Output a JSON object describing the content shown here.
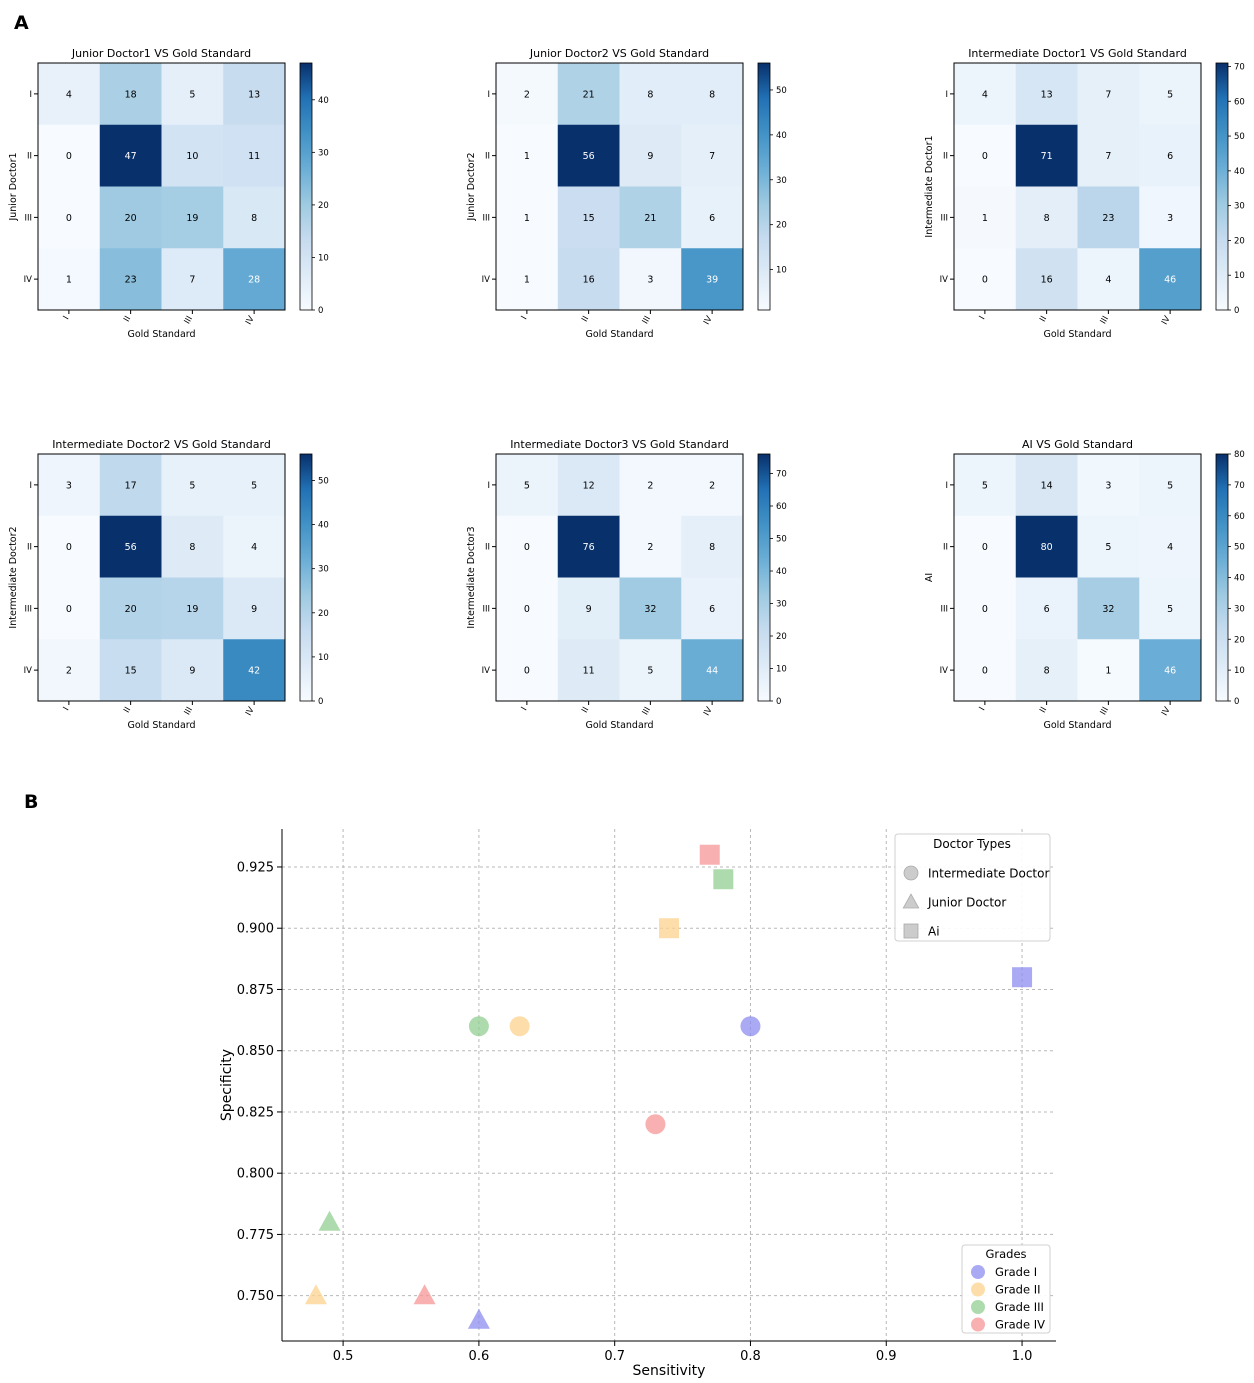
{
  "panel_labels": {
    "a": "A",
    "b": "B"
  },
  "colors": {
    "cmap_low": "#f7fbff",
    "cmap_mid1": "#deebf7",
    "cmap_mid2": "#c6dbef",
    "cmap_mid3": "#9ecae1",
    "cmap_mid4": "#6baed6",
    "cmap_mid5": "#4292c6",
    "cmap_mid6": "#2171b5",
    "cmap_high": "#08306b",
    "grade1": "#8c8cf0",
    "grade2": "#fcd38d",
    "grade3": "#93cf93",
    "grade4": "#f59595",
    "marker_legend_gray": "#cccccc"
  },
  "chart_data": [
    {
      "type": "heatmap",
      "title": "Junior Doctor1 VS Gold Standard",
      "xlabel": "Gold Standard",
      "ylabel": "Junior Doctor1",
      "x_ticks": [
        "I",
        "II",
        "III",
        "IV"
      ],
      "y_ticks": [
        "I",
        "II",
        "III",
        "IV"
      ],
      "matrix": [
        [
          4,
          18,
          5,
          13
        ],
        [
          0,
          47,
          10,
          11
        ],
        [
          0,
          20,
          19,
          8
        ],
        [
          1,
          23,
          7,
          28
        ]
      ],
      "vmin": 0,
      "vmax": 47,
      "colorbar_ticks": [
        0,
        10,
        20,
        30,
        40
      ]
    },
    {
      "type": "heatmap",
      "title": "Junior Doctor2 VS Gold Standard",
      "xlabel": "Gold Standard",
      "ylabel": "Junior Doctor2",
      "x_ticks": [
        "I",
        "II",
        "III",
        "IV"
      ],
      "y_ticks": [
        "I",
        "II",
        "III",
        "IV"
      ],
      "matrix": [
        [
          2,
          21,
          8,
          8
        ],
        [
          1,
          56,
          9,
          7
        ],
        [
          1,
          15,
          21,
          6
        ],
        [
          1,
          16,
          3,
          39
        ]
      ],
      "vmin": 1,
      "vmax": 56,
      "colorbar_ticks": [
        10,
        20,
        30,
        40,
        50
      ]
    },
    {
      "type": "heatmap",
      "title": "Intermediate Doctor1 VS Gold Standard",
      "xlabel": "Gold Standard",
      "ylabel": "Intermediate Doctor1",
      "x_ticks": [
        "I",
        "II",
        "III",
        "IV"
      ],
      "y_ticks": [
        "I",
        "II",
        "III",
        "IV"
      ],
      "matrix": [
        [
          4,
          13,
          7,
          5
        ],
        [
          0,
          71,
          7,
          6
        ],
        [
          1,
          8,
          23,
          3
        ],
        [
          0,
          16,
          4,
          46
        ]
      ],
      "vmin": 0,
      "vmax": 71,
      "colorbar_ticks": [
        0,
        10,
        20,
        30,
        40,
        50,
        60,
        70
      ]
    },
    {
      "type": "heatmap",
      "title": "Intermediate Doctor2 VS Gold Standard",
      "xlabel": "Gold Standard",
      "ylabel": "Intermediate Doctor2",
      "x_ticks": [
        "I",
        "II",
        "III",
        "IV"
      ],
      "y_ticks": [
        "I",
        "II",
        "III",
        "IV"
      ],
      "matrix": [
        [
          3,
          17,
          5,
          5
        ],
        [
          0,
          56,
          8,
          4
        ],
        [
          0,
          20,
          19,
          9
        ],
        [
          2,
          15,
          9,
          42
        ]
      ],
      "vmin": 0,
      "vmax": 56,
      "colorbar_ticks": [
        0,
        10,
        20,
        30,
        40,
        50
      ]
    },
    {
      "type": "heatmap",
      "title": "Intermediate Doctor3 VS Gold Standard",
      "xlabel": "Gold Standard",
      "ylabel": "Intermediate Doctor3",
      "x_ticks": [
        "I",
        "II",
        "III",
        "IV"
      ],
      "y_ticks": [
        "I",
        "II",
        "III",
        "IV"
      ],
      "matrix": [
        [
          5,
          12,
          2,
          2
        ],
        [
          0,
          76,
          2,
          8
        ],
        [
          0,
          9,
          32,
          6
        ],
        [
          0,
          11,
          5,
          44
        ]
      ],
      "vmin": 0,
      "vmax": 76,
      "colorbar_ticks": [
        0,
        10,
        20,
        30,
        40,
        50,
        60,
        70
      ]
    },
    {
      "type": "heatmap",
      "title": "AI VS Gold Standard",
      "xlabel": "Gold Standard",
      "ylabel": "AI",
      "x_ticks": [
        "I",
        "II",
        "III",
        "IV"
      ],
      "y_ticks": [
        "I",
        "II",
        "III",
        "IV"
      ],
      "matrix": [
        [
          5,
          14,
          3,
          5
        ],
        [
          0,
          80,
          5,
          4
        ],
        [
          0,
          6,
          32,
          5
        ],
        [
          0,
          8,
          1,
          46
        ]
      ],
      "vmin": 0,
      "vmax": 80,
      "colorbar_ticks": [
        0,
        10,
        20,
        30,
        40,
        50,
        60,
        70,
        80
      ]
    },
    {
      "type": "scatter",
      "xlabel": "Sensitivity",
      "ylabel": "Specificity",
      "xlim": [
        0.455,
        1.025
      ],
      "ylim": [
        0.7315,
        0.9405
      ],
      "x_ticks": [
        "0.5",
        "0.6",
        "0.7",
        "0.8",
        "0.9",
        "1.0"
      ],
      "x_tick_values": [
        0.5,
        0.6,
        0.7,
        0.8,
        0.9,
        1.0
      ],
      "y_ticks": [
        "0.750",
        "0.775",
        "0.800",
        "0.825",
        "0.850",
        "0.875",
        "0.900",
        "0.925"
      ],
      "y_tick_values": [
        0.75,
        0.775,
        0.8,
        0.825,
        0.85,
        0.875,
        0.9,
        0.925
      ],
      "grid": true,
      "shape_legend": {
        "title": "Doctor Types",
        "position": "top-right",
        "entries": [
          {
            "label": "Intermediate Doctor",
            "marker": "circle"
          },
          {
            "label": "Junior Doctor",
            "marker": "triangle"
          },
          {
            "label": "Ai",
            "marker": "square"
          }
        ]
      },
      "color_legend": {
        "title": "Grades",
        "position": "bottom-right",
        "entries": [
          {
            "label": "Grade I",
            "color_key": "grade1"
          },
          {
            "label": "Grade II",
            "color_key": "grade2"
          },
          {
            "label": "Grade III",
            "color_key": "grade3"
          },
          {
            "label": "Grade IV",
            "color_key": "grade4"
          }
        ]
      },
      "points": [
        {
          "doctor": "Ai",
          "marker": "square",
          "grade": "Grade IV",
          "color_key": "grade4",
          "x": 0.77,
          "y": 0.93
        },
        {
          "doctor": "Ai",
          "marker": "square",
          "grade": "Grade III",
          "color_key": "grade3",
          "x": 0.78,
          "y": 0.92
        },
        {
          "doctor": "Ai",
          "marker": "square",
          "grade": "Grade II",
          "color_key": "grade2",
          "x": 0.74,
          "y": 0.9
        },
        {
          "doctor": "Ai",
          "marker": "square",
          "grade": "Grade I",
          "color_key": "grade1",
          "x": 1.0,
          "y": 0.88
        },
        {
          "doctor": "Intermediate Doctor",
          "marker": "circle",
          "grade": "Grade III",
          "color_key": "grade3",
          "x": 0.6,
          "y": 0.86
        },
        {
          "doctor": "Intermediate Doctor",
          "marker": "circle",
          "grade": "Grade II",
          "color_key": "grade2",
          "x": 0.63,
          "y": 0.86
        },
        {
          "doctor": "Intermediate Doctor",
          "marker": "circle",
          "grade": "Grade I",
          "color_key": "grade1",
          "x": 0.8,
          "y": 0.86
        },
        {
          "doctor": "Intermediate Doctor",
          "marker": "circle",
          "grade": "Grade IV",
          "color_key": "grade4",
          "x": 0.73,
          "y": 0.82
        },
        {
          "doctor": "Junior Doctor",
          "marker": "triangle",
          "grade": "Grade III",
          "color_key": "grade3",
          "x": 0.49,
          "y": 0.78
        },
        {
          "doctor": "Junior Doctor",
          "marker": "triangle",
          "grade": "Grade II",
          "color_key": "grade2",
          "x": 0.48,
          "y": 0.75
        },
        {
          "doctor": "Junior Doctor",
          "marker": "triangle",
          "grade": "Grade IV",
          "color_key": "grade4",
          "x": 0.56,
          "y": 0.75
        },
        {
          "doctor": "Junior Doctor",
          "marker": "triangle",
          "grade": "Grade I",
          "color_key": "grade1",
          "x": 0.6,
          "y": 0.74
        }
      ]
    }
  ]
}
